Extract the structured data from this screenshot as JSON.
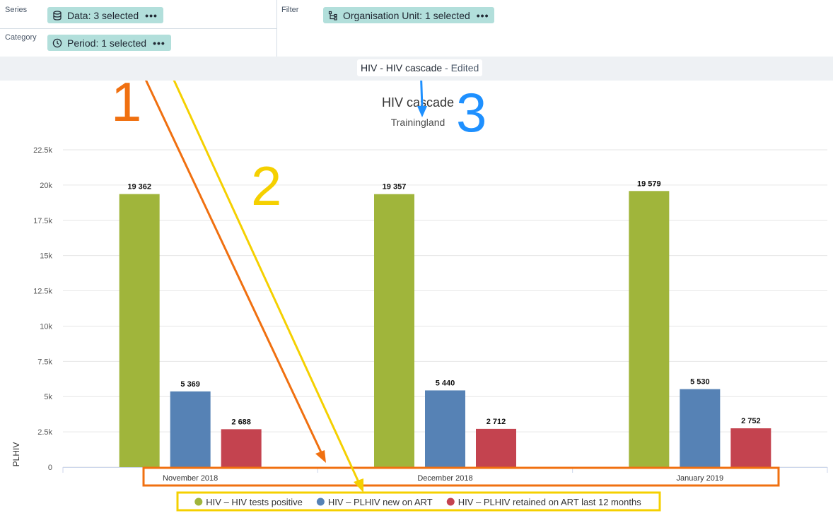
{
  "layout": {
    "series_label": "Series",
    "category_label": "Category",
    "filter_label": "Filter",
    "series_chip": "Data: 3 selected",
    "category_chip": "Period: 1 selected",
    "filter_chip": "Organisation Unit: 1 selected",
    "chip_more": "•••"
  },
  "visualization": {
    "name": "HIV - HIV cascade",
    "edited_suffix": "- Edited"
  },
  "annotations": [
    "1",
    "2",
    "3"
  ],
  "chart_data": {
    "type": "bar",
    "title": "HIV cascade",
    "subtitle": "Trainingland",
    "ylabel": "PLHIV",
    "xlabel": "",
    "ylim": [
      0,
      22500
    ],
    "yticks": [
      0,
      2500,
      5000,
      7500,
      10000,
      12500,
      15000,
      17500,
      20000,
      22500
    ],
    "ytick_labels": [
      "0",
      "2.5k",
      "5k",
      "7.5k",
      "10k",
      "12.5k",
      "15k",
      "17.5k",
      "20k",
      "22.5k"
    ],
    "grid": true,
    "legend_position": "bottom",
    "categories": [
      "November 2018",
      "December 2018",
      "January 2019"
    ],
    "series": [
      {
        "name": "HIV – HIV tests positive",
        "color": "#a0b53b",
        "values": [
          19362,
          19357,
          19579
        ],
        "labels": [
          "19 362",
          "19 357",
          "19 579"
        ]
      },
      {
        "name": "HIV – PLHIV new on ART",
        "color": "#5682b5",
        "values": [
          5369,
          5440,
          5530
        ],
        "labels": [
          "5 369",
          "5 440",
          "5 530"
        ]
      },
      {
        "name": "HIV – PLHIV retained on ART last 12 months",
        "color": "#c4434f",
        "values": [
          2688,
          2712,
          2752
        ],
        "labels": [
          "2 688",
          "2 712",
          "2 752"
        ]
      }
    ]
  }
}
